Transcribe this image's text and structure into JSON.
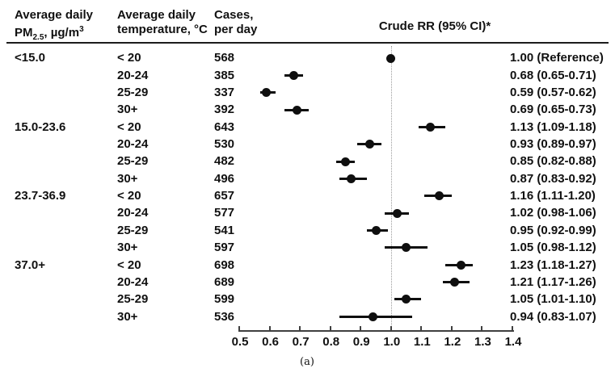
{
  "header": {
    "col1": {
      "line1": "Average daily",
      "pm_prefix": "PM",
      "pm_sub": "2.5",
      "pm_mid": ", µg/m",
      "pm_sup": "3"
    },
    "col2": {
      "line1": "Average daily",
      "line2": "temperature, °C"
    },
    "col3": {
      "line1": "Cases,",
      "line2": "per day"
    },
    "plot_title": "Crude RR (95% CI)*"
  },
  "caption": "(a)",
  "colors": {
    "background": "#ffffff",
    "text": "#111111",
    "marker": "#0f0f0f",
    "axis": "#3f3f3f",
    "reference_line": "#9b9b9b",
    "header_rule": "#1c1c1c"
  },
  "chart_data": {
    "type": "scatter",
    "subtype": "forest-plot",
    "title": "Crude RR (95% CI)*",
    "xlabel": "",
    "ylabel": "",
    "xlim": [
      0.5,
      1.4
    ],
    "xticks": [
      "0.5",
      "0.6",
      "0.7",
      "0.8",
      "0.9",
      "1.0",
      "1.1",
      "1.2",
      "1.3",
      "1.4"
    ],
    "reference_line_x": 1.0,
    "grid": false,
    "columns": [
      "Average daily PM2.5, µg/m3",
      "Average daily temperature, °C",
      "Cases, per day",
      "Crude RR (95% CI)*"
    ],
    "groups": [
      {
        "pm25": "<15.0",
        "rows": [
          {
            "temperature": "< 20",
            "cases": "568",
            "rr": 1.0,
            "ci_low": null,
            "ci_high": null,
            "rr_label": "1.00 (Reference)"
          },
          {
            "temperature": "20-24",
            "cases": "385",
            "rr": 0.68,
            "ci_low": 0.65,
            "ci_high": 0.71,
            "rr_label": "0.68 (0.65-0.71)"
          },
          {
            "temperature": "25-29",
            "cases": "337",
            "rr": 0.59,
            "ci_low": 0.57,
            "ci_high": 0.62,
            "rr_label": "0.59 (0.57-0.62)"
          },
          {
            "temperature": "30+",
            "cases": "392",
            "rr": 0.69,
            "ci_low": 0.65,
            "ci_high": 0.73,
            "rr_label": "0.69 (0.65-0.73)"
          }
        ]
      },
      {
        "pm25": "15.0-23.6",
        "rows": [
          {
            "temperature": "< 20",
            "cases": "643",
            "rr": 1.13,
            "ci_low": 1.09,
            "ci_high": 1.18,
            "rr_label": "1.13 (1.09-1.18)"
          },
          {
            "temperature": "20-24",
            "cases": "530",
            "rr": 0.93,
            "ci_low": 0.89,
            "ci_high": 0.97,
            "rr_label": "0.93 (0.89-0.97)"
          },
          {
            "temperature": "25-29",
            "cases": "482",
            "rr": 0.85,
            "ci_low": 0.82,
            "ci_high": 0.88,
            "rr_label": "0.85 (0.82-0.88)"
          },
          {
            "temperature": "30+",
            "cases": "496",
            "rr": 0.87,
            "ci_low": 0.83,
            "ci_high": 0.92,
            "rr_label": "0.87 (0.83-0.92)"
          }
        ]
      },
      {
        "pm25": "23.7-36.9",
        "rows": [
          {
            "temperature": "< 20",
            "cases": "657",
            "rr": 1.16,
            "ci_low": 1.11,
            "ci_high": 1.2,
            "rr_label": "1.16 (1.11-1.20)"
          },
          {
            "temperature": "20-24",
            "cases": "577",
            "rr": 1.02,
            "ci_low": 0.98,
            "ci_high": 1.06,
            "rr_label": "1.02 (0.98-1.06)"
          },
          {
            "temperature": "25-29",
            "cases": "541",
            "rr": 0.95,
            "ci_low": 0.92,
            "ci_high": 0.99,
            "rr_label": "0.95 (0.92-0.99)"
          },
          {
            "temperature": "30+",
            "cases": "597",
            "rr": 1.05,
            "ci_low": 0.98,
            "ci_high": 1.12,
            "rr_label": "1.05 (0.98-1.12)"
          }
        ]
      },
      {
        "pm25": "37.0+",
        "rows": [
          {
            "temperature": "< 20",
            "cases": "698",
            "rr": 1.23,
            "ci_low": 1.18,
            "ci_high": 1.27,
            "rr_label": "1.23 (1.18-1.27)"
          },
          {
            "temperature": "20-24",
            "cases": "689",
            "rr": 1.21,
            "ci_low": 1.17,
            "ci_high": 1.26,
            "rr_label": "1.21 (1.17-1.26)"
          },
          {
            "temperature": "25-29",
            "cases": "599",
            "rr": 1.05,
            "ci_low": 1.01,
            "ci_high": 1.1,
            "rr_label": "1.05 (1.01-1.10)"
          },
          {
            "temperature": "30+",
            "cases": "536",
            "rr": 0.94,
            "ci_low": 0.83,
            "ci_high": 1.07,
            "rr_label": "0.94 (0.83-1.07)"
          }
        ]
      }
    ]
  }
}
